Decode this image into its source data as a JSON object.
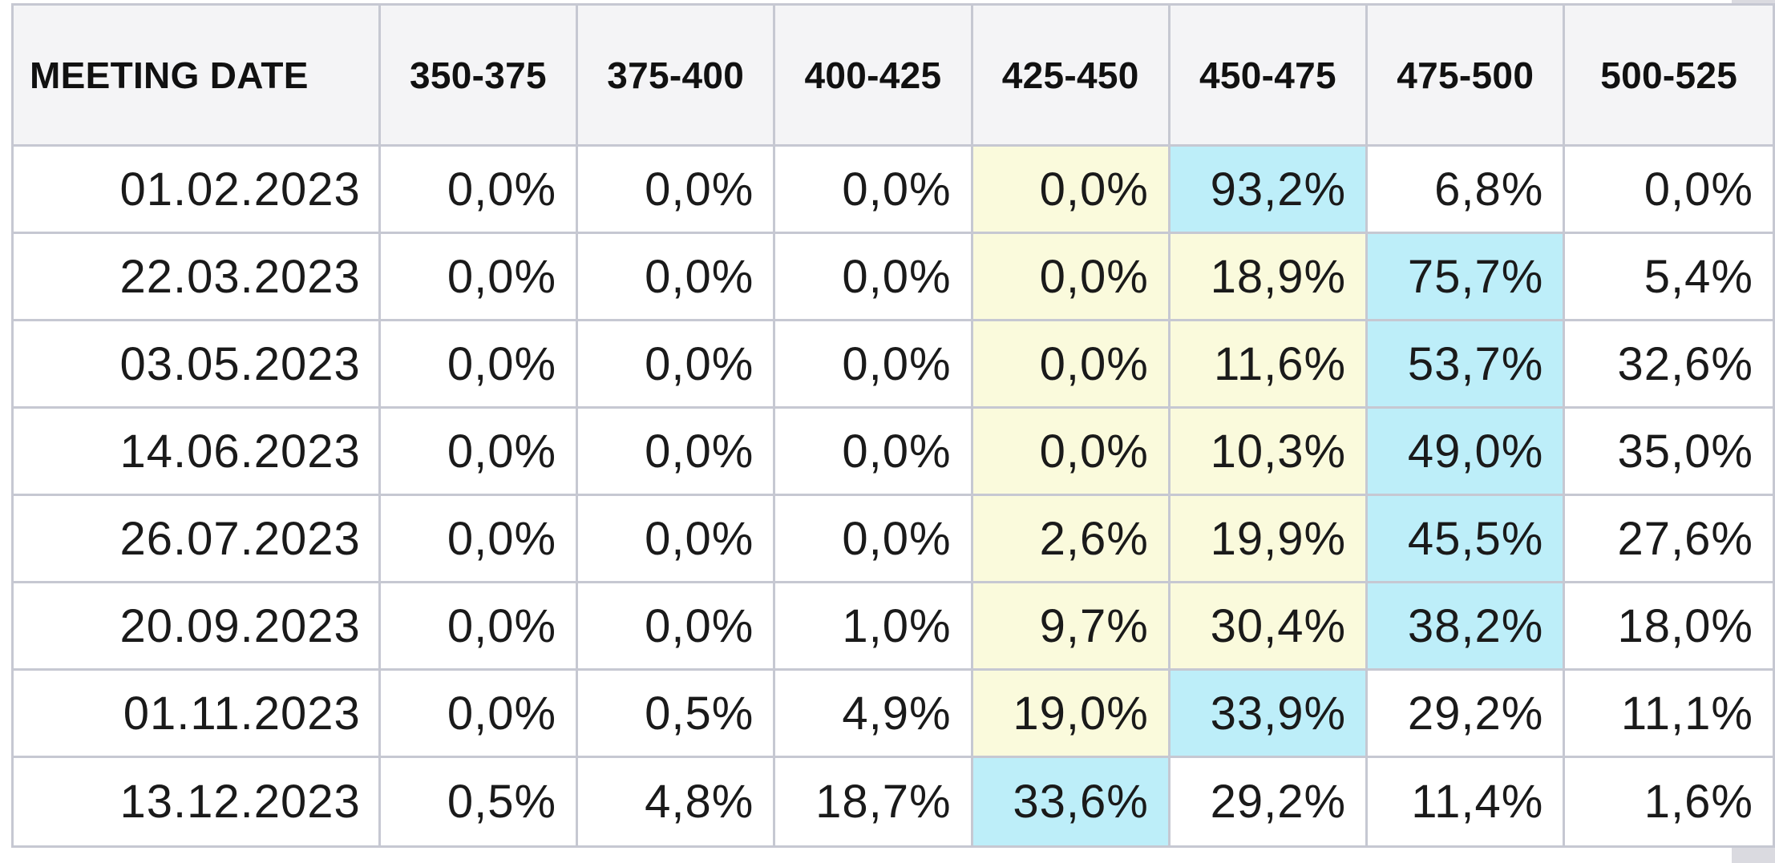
{
  "table": {
    "date_header": "MEETING DATE",
    "columns": [
      "350-375",
      "375-400",
      "400-425",
      "425-450",
      "450-475",
      "475-500",
      "500-525"
    ],
    "rows": [
      {
        "date": "01.02.2023",
        "cells": [
          {
            "value": "0,0%",
            "highlight": "none"
          },
          {
            "value": "0,0%",
            "highlight": "none"
          },
          {
            "value": "0,0%",
            "highlight": "none"
          },
          {
            "value": "0,0%",
            "highlight": "yellow"
          },
          {
            "value": "93,2%",
            "highlight": "blue"
          },
          {
            "value": "6,8%",
            "highlight": "none"
          },
          {
            "value": "0,0%",
            "highlight": "none"
          }
        ]
      },
      {
        "date": "22.03.2023",
        "cells": [
          {
            "value": "0,0%",
            "highlight": "none"
          },
          {
            "value": "0,0%",
            "highlight": "none"
          },
          {
            "value": "0,0%",
            "highlight": "none"
          },
          {
            "value": "0,0%",
            "highlight": "yellow"
          },
          {
            "value": "18,9%",
            "highlight": "yellow"
          },
          {
            "value": "75,7%",
            "highlight": "blue"
          },
          {
            "value": "5,4%",
            "highlight": "none"
          }
        ]
      },
      {
        "date": "03.05.2023",
        "cells": [
          {
            "value": "0,0%",
            "highlight": "none"
          },
          {
            "value": "0,0%",
            "highlight": "none"
          },
          {
            "value": "0,0%",
            "highlight": "none"
          },
          {
            "value": "0,0%",
            "highlight": "yellow"
          },
          {
            "value": "11,6%",
            "highlight": "yellow"
          },
          {
            "value": "53,7%",
            "highlight": "blue"
          },
          {
            "value": "32,6%",
            "highlight": "none"
          }
        ]
      },
      {
        "date": "14.06.2023",
        "cells": [
          {
            "value": "0,0%",
            "highlight": "none"
          },
          {
            "value": "0,0%",
            "highlight": "none"
          },
          {
            "value": "0,0%",
            "highlight": "none"
          },
          {
            "value": "0,0%",
            "highlight": "yellow"
          },
          {
            "value": "10,3%",
            "highlight": "yellow"
          },
          {
            "value": "49,0%",
            "highlight": "blue"
          },
          {
            "value": "35,0%",
            "highlight": "none"
          }
        ]
      },
      {
        "date": "26.07.2023",
        "cells": [
          {
            "value": "0,0%",
            "highlight": "none"
          },
          {
            "value": "0,0%",
            "highlight": "none"
          },
          {
            "value": "0,0%",
            "highlight": "none"
          },
          {
            "value": "2,6%",
            "highlight": "yellow"
          },
          {
            "value": "19,9%",
            "highlight": "yellow"
          },
          {
            "value": "45,5%",
            "highlight": "blue"
          },
          {
            "value": "27,6%",
            "highlight": "none"
          }
        ]
      },
      {
        "date": "20.09.2023",
        "cells": [
          {
            "value": "0,0%",
            "highlight": "none"
          },
          {
            "value": "0,0%",
            "highlight": "none"
          },
          {
            "value": "1,0%",
            "highlight": "none"
          },
          {
            "value": "9,7%",
            "highlight": "yellow"
          },
          {
            "value": "30,4%",
            "highlight": "yellow"
          },
          {
            "value": "38,2%",
            "highlight": "blue"
          },
          {
            "value": "18,0%",
            "highlight": "none"
          }
        ]
      },
      {
        "date": "01.11.2023",
        "cells": [
          {
            "value": "0,0%",
            "highlight": "none"
          },
          {
            "value": "0,5%",
            "highlight": "none"
          },
          {
            "value": "4,9%",
            "highlight": "none"
          },
          {
            "value": "19,0%",
            "highlight": "yellow"
          },
          {
            "value": "33,9%",
            "highlight": "blue"
          },
          {
            "value": "29,2%",
            "highlight": "none"
          },
          {
            "value": "11,1%",
            "highlight": "none"
          }
        ]
      },
      {
        "date": "13.12.2023",
        "cells": [
          {
            "value": "0,5%",
            "highlight": "none"
          },
          {
            "value": "4,8%",
            "highlight": "none"
          },
          {
            "value": "18,7%",
            "highlight": "none"
          },
          {
            "value": "33,6%",
            "highlight": "blue"
          },
          {
            "value": "29,2%",
            "highlight": "none"
          },
          {
            "value": "11,4%",
            "highlight": "none"
          },
          {
            "value": "1,6%",
            "highlight": "none"
          }
        ]
      }
    ]
  },
  "colors": {
    "yellow_highlight": "#fafadc",
    "blue_highlight": "#bdeef9",
    "header_bg": "#f4f4f6",
    "border": "#c6c8d2"
  }
}
